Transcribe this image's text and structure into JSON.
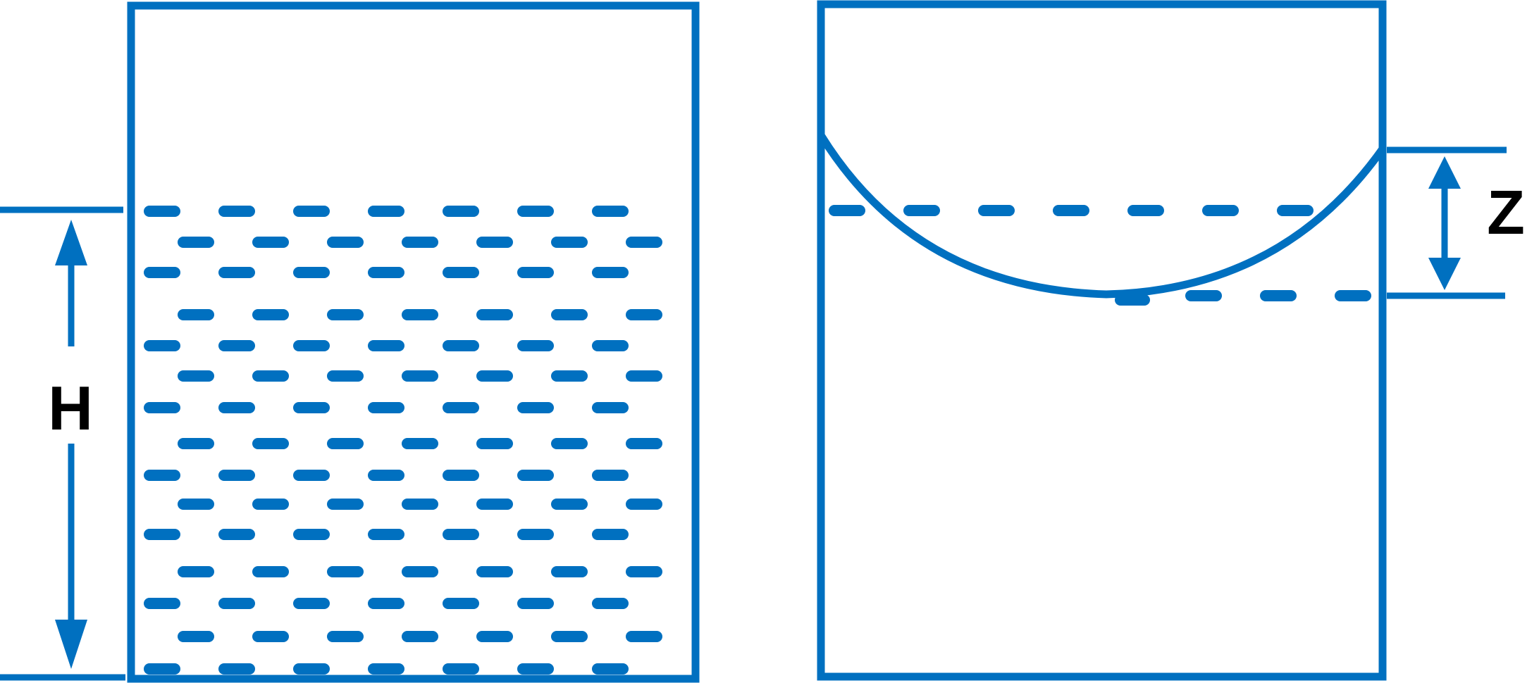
{
  "colors": {
    "stroke": "#0070c0",
    "label": "#000000",
    "background": "#ffffff"
  },
  "left_figure": {
    "height_label": "H"
  },
  "right_figure": {
    "depth_label": "Z"
  }
}
